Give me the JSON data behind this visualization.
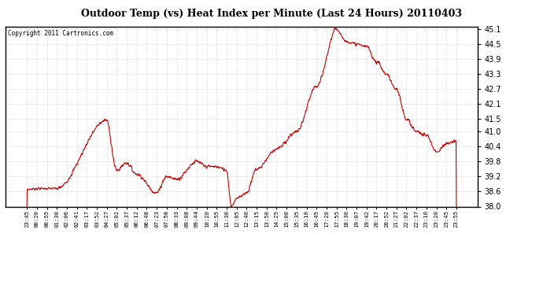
{
  "title": "Outdoor Temp (vs) Heat Index per Minute (Last 24 Hours) 20110403",
  "copyright": "Copyright 2011 Cartronics.com",
  "line_color": "#cc0000",
  "background_color": "#ffffff",
  "plot_bg_color": "#ffffff",
  "ylim": [
    38.0,
    45.2
  ],
  "yticks": [
    38.0,
    38.6,
    39.2,
    39.8,
    40.4,
    41.0,
    41.5,
    42.1,
    42.7,
    43.3,
    43.9,
    44.5,
    45.1
  ],
  "xtick_labels": [
    "23:45",
    "00:20",
    "00:55",
    "01:30",
    "02:06",
    "02:41",
    "03:17",
    "03:52",
    "04:27",
    "05:02",
    "05:37",
    "06:12",
    "06:48",
    "07:23",
    "07:58",
    "08:33",
    "09:08",
    "09:44",
    "10:20",
    "10:55",
    "11:30",
    "12:05",
    "12:40",
    "13:15",
    "13:50",
    "14:25",
    "15:00",
    "15:35",
    "16:10",
    "16:45",
    "17:20",
    "17:55",
    "18:30",
    "19:07",
    "19:42",
    "20:17",
    "20:52",
    "21:27",
    "22:02",
    "22:37",
    "23:10",
    "23:20",
    "23:45",
    "23:55"
  ],
  "num_points": 1440
}
